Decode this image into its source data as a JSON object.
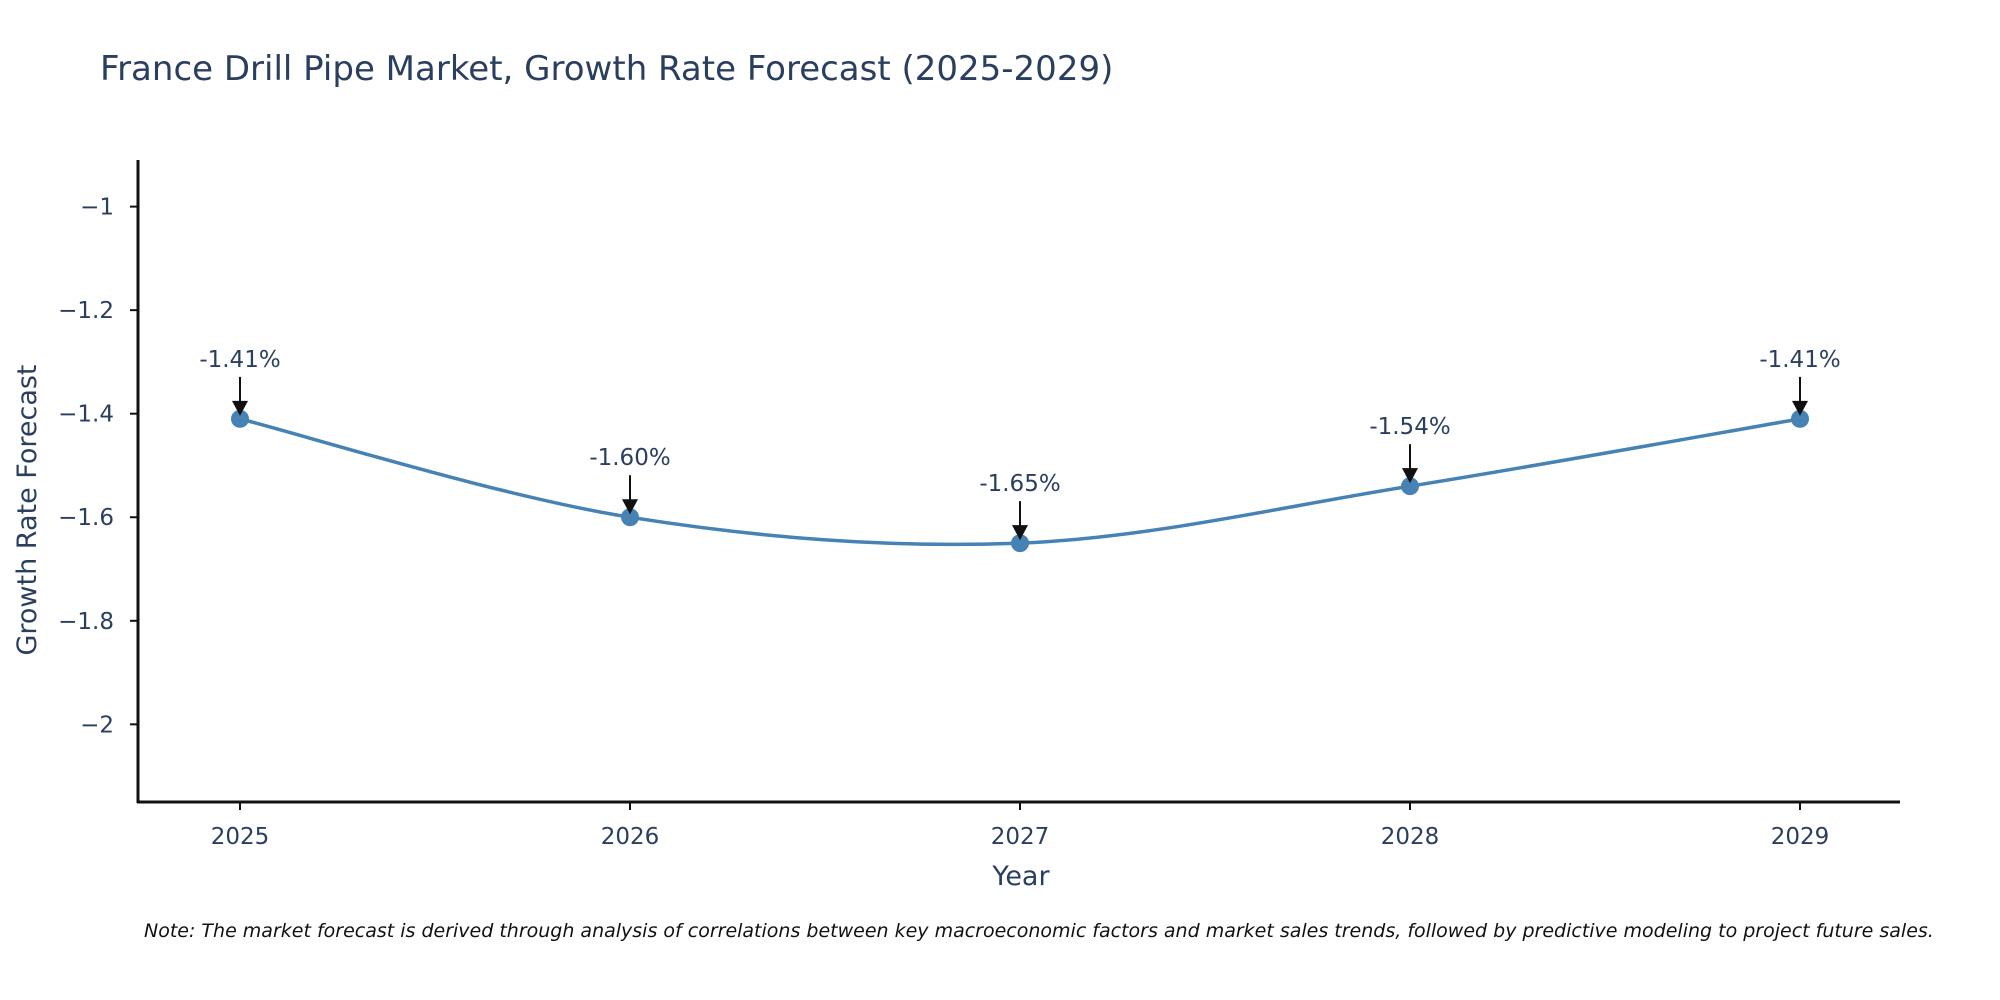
{
  "chart_data": {
    "type": "line",
    "title": "France Drill Pipe Market, Growth Rate Forecast (2025-2029)",
    "xlabel": "Year",
    "ylabel": "Growth Rate Forecast",
    "categories": [
      "2025",
      "2026",
      "2027",
      "2028",
      "2029"
    ],
    "series": [
      {
        "name": "Growth Rate Forecast",
        "values": [
          -1.41,
          -1.6,
          -1.65,
          -1.54,
          -1.41
        ],
        "line_shape": "spline",
        "color": "#4682b4"
      }
    ],
    "point_labels": [
      "-1.41%",
      "-1.60%",
      "-1.65%",
      "-1.54%",
      "-1.41%"
    ],
    "ylim": [
      -2.15,
      -0.91
    ],
    "yticks": [
      -1,
      -1.2,
      -1.4,
      -1.6,
      -1.8,
      -2
    ],
    "ytick_labels": [
      "−1",
      "−1.2",
      "−1.4",
      "−1.6",
      "−1.8",
      "−2"
    ],
    "grid": false,
    "legend": "none"
  },
  "note": "Note: The market forecast is derived through analysis of correlations between key macroeconomic factors and market sales trends, followed by predictive modeling to project future sales."
}
